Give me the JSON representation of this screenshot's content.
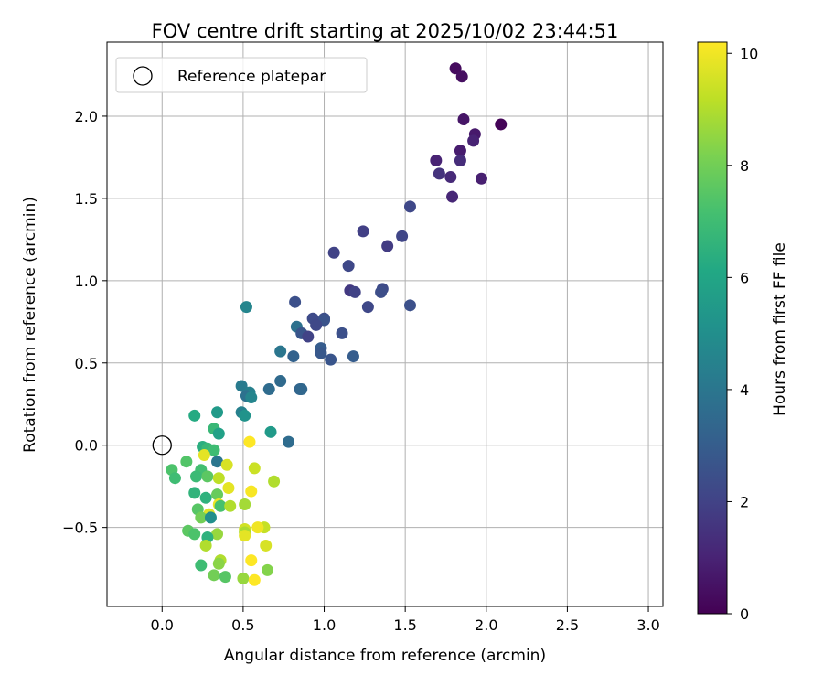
{
  "chart_data": {
    "type": "scatter",
    "title": "FOV centre drift starting at 2025/10/02 23:44:51",
    "xlabel": "Angular distance from reference (arcmin)",
    "ylabel": "Rotation from reference (arcmin)",
    "xlim": [
      -0.34,
      3.09
    ],
    "ylim": [
      -0.98,
      2.45
    ],
    "xticks": [
      0.0,
      0.5,
      1.0,
      1.5,
      2.0,
      2.5,
      3.0
    ],
    "xtick_labels": [
      "0.0",
      "0.5",
      "1.0",
      "1.5",
      "2.0",
      "2.5",
      "3.0"
    ],
    "yticks": [
      -0.5,
      0.0,
      0.5,
      1.0,
      1.5,
      2.0
    ],
    "ytick_labels": [
      "−0.5",
      "0.0",
      "0.5",
      "1.0",
      "1.5",
      "2.0"
    ],
    "grid": true,
    "legend": {
      "position": "top-left",
      "entries": [
        {
          "label": "Reference platepar",
          "marker": "hollow-circle",
          "x": 0,
          "y": 0
        }
      ]
    },
    "colorbar": {
      "label": "Hours from first FF file",
      "range": [
        0,
        10.2
      ],
      "ticks": [
        0,
        2,
        4,
        6,
        8,
        10
      ],
      "colormap": "viridis"
    },
    "points": [
      {
        "x": 1.81,
        "y": 2.29,
        "h": 0.3
      },
      {
        "x": 1.85,
        "y": 2.24,
        "h": 0.4
      },
      {
        "x": 2.09,
        "y": 1.95,
        "h": 0.1
      },
      {
        "x": 1.86,
        "y": 1.98,
        "h": 0.6
      },
      {
        "x": 1.93,
        "y": 1.89,
        "h": 0.7
      },
      {
        "x": 1.92,
        "y": 1.85,
        "h": 1.0
      },
      {
        "x": 1.84,
        "y": 1.79,
        "h": 0.8
      },
      {
        "x": 1.69,
        "y": 1.73,
        "h": 1.0
      },
      {
        "x": 1.84,
        "y": 1.73,
        "h": 1.3
      },
      {
        "x": 1.71,
        "y": 1.65,
        "h": 1.5
      },
      {
        "x": 1.78,
        "y": 1.63,
        "h": 1.2
      },
      {
        "x": 1.97,
        "y": 1.62,
        "h": 0.9
      },
      {
        "x": 1.79,
        "y": 1.51,
        "h": 1.1
      },
      {
        "x": 1.53,
        "y": 1.45,
        "h": 2.2
      },
      {
        "x": 1.24,
        "y": 1.3,
        "h": 1.9
      },
      {
        "x": 1.48,
        "y": 1.27,
        "h": 2.1
      },
      {
        "x": 1.39,
        "y": 1.21,
        "h": 1.8
      },
      {
        "x": 1.06,
        "y": 1.17,
        "h": 2.0
      },
      {
        "x": 1.15,
        "y": 1.09,
        "h": 2.2
      },
      {
        "x": 1.36,
        "y": 0.95,
        "h": 2.3
      },
      {
        "x": 1.35,
        "y": 0.93,
        "h": 2.4
      },
      {
        "x": 1.16,
        "y": 0.94,
        "h": 1.7
      },
      {
        "x": 1.19,
        "y": 0.93,
        "h": 2.0
      },
      {
        "x": 1.53,
        "y": 0.85,
        "h": 2.5
      },
      {
        "x": 1.27,
        "y": 0.84,
        "h": 2.2
      },
      {
        "x": 0.82,
        "y": 0.87,
        "h": 2.5
      },
      {
        "x": 0.52,
        "y": 0.84,
        "h": 4.6
      },
      {
        "x": 1.0,
        "y": 0.77,
        "h": 2.4
      },
      {
        "x": 0.93,
        "y": 0.77,
        "h": 2.3
      },
      {
        "x": 1.0,
        "y": 0.76,
        "h": 2.6
      },
      {
        "x": 0.95,
        "y": 0.73,
        "h": 2.2
      },
      {
        "x": 0.83,
        "y": 0.72,
        "h": 3.8
      },
      {
        "x": 0.86,
        "y": 0.68,
        "h": 2.7
      },
      {
        "x": 1.11,
        "y": 0.68,
        "h": 2.5
      },
      {
        "x": 0.9,
        "y": 0.66,
        "h": 2.0
      },
      {
        "x": 0.98,
        "y": 0.59,
        "h": 3.0
      },
      {
        "x": 0.98,
        "y": 0.56,
        "h": 2.8
      },
      {
        "x": 0.73,
        "y": 0.57,
        "h": 4.0
      },
      {
        "x": 0.81,
        "y": 0.54,
        "h": 3.2
      },
      {
        "x": 1.04,
        "y": 0.52,
        "h": 2.7
      },
      {
        "x": 1.18,
        "y": 0.54,
        "h": 3.0
      },
      {
        "x": 0.73,
        "y": 0.39,
        "h": 3.5
      },
      {
        "x": 0.49,
        "y": 0.36,
        "h": 4.2
      },
      {
        "x": 0.85,
        "y": 0.34,
        "h": 3.3
      },
      {
        "x": 0.66,
        "y": 0.34,
        "h": 3.6
      },
      {
        "x": 0.86,
        "y": 0.34,
        "h": 3.4
      },
      {
        "x": 0.54,
        "y": 0.32,
        "h": 4.4
      },
      {
        "x": 0.52,
        "y": 0.3,
        "h": 3.8
      },
      {
        "x": 0.55,
        "y": 0.29,
        "h": 4.6
      },
      {
        "x": 0.49,
        "y": 0.2,
        "h": 4.4
      },
      {
        "x": 0.51,
        "y": 0.18,
        "h": 5.2
      },
      {
        "x": 0.34,
        "y": 0.2,
        "h": 5.5
      },
      {
        "x": 0.2,
        "y": 0.18,
        "h": 6.2
      },
      {
        "x": 0.32,
        "y": 0.1,
        "h": 6.8
      },
      {
        "x": 0.35,
        "y": 0.07,
        "h": 5.8
      },
      {
        "x": 0.67,
        "y": 0.08,
        "h": 5.5
      },
      {
        "x": 0.78,
        "y": 0.02,
        "h": 3.6
      },
      {
        "x": 0.54,
        "y": 0.02,
        "h": 10.2
      },
      {
        "x": 0.25,
        "y": -0.01,
        "h": 6.4
      },
      {
        "x": 0.28,
        "y": -0.02,
        "h": 6.8
      },
      {
        "x": 0.32,
        "y": -0.03,
        "h": 7.0
      },
      {
        "x": 0.26,
        "y": -0.06,
        "h": 9.8
      },
      {
        "x": 0.15,
        "y": -0.1,
        "h": 7.4
      },
      {
        "x": 0.34,
        "y": -0.1,
        "h": 4.0
      },
      {
        "x": 0.4,
        "y": -0.12,
        "h": 9.6
      },
      {
        "x": 0.06,
        "y": -0.15,
        "h": 7.3
      },
      {
        "x": 0.24,
        "y": -0.15,
        "h": 7.1
      },
      {
        "x": 0.57,
        "y": -0.14,
        "h": 9.4
      },
      {
        "x": 0.08,
        "y": -0.2,
        "h": 7.0
      },
      {
        "x": 0.21,
        "y": -0.19,
        "h": 6.9
      },
      {
        "x": 0.28,
        "y": -0.19,
        "h": 7.6
      },
      {
        "x": 0.35,
        "y": -0.2,
        "h": 9.2
      },
      {
        "x": 0.69,
        "y": -0.22,
        "h": 9.0
      },
      {
        "x": 0.41,
        "y": -0.26,
        "h": 9.8
      },
      {
        "x": 0.55,
        "y": -0.28,
        "h": 10.1
      },
      {
        "x": 0.2,
        "y": -0.29,
        "h": 6.6
      },
      {
        "x": 0.27,
        "y": -0.32,
        "h": 6.5
      },
      {
        "x": 0.34,
        "y": -0.3,
        "h": 7.8
      },
      {
        "x": 0.35,
        "y": -0.36,
        "h": 9.9
      },
      {
        "x": 0.36,
        "y": -0.37,
        "h": 7.2
      },
      {
        "x": 0.42,
        "y": -0.37,
        "h": 9.0
      },
      {
        "x": 0.51,
        "y": -0.36,
        "h": 8.8
      },
      {
        "x": 0.22,
        "y": -0.39,
        "h": 7.5
      },
      {
        "x": 0.29,
        "y": -0.42,
        "h": 9.7
      },
      {
        "x": 0.24,
        "y": -0.44,
        "h": 8.0
      },
      {
        "x": 0.3,
        "y": -0.44,
        "h": 5.0
      },
      {
        "x": 0.63,
        "y": -0.5,
        "h": 9.3
      },
      {
        "x": 0.59,
        "y": -0.5,
        "h": 10.0
      },
      {
        "x": 0.51,
        "y": -0.51,
        "h": 9.5
      },
      {
        "x": 0.16,
        "y": -0.52,
        "h": 7.6
      },
      {
        "x": 0.2,
        "y": -0.54,
        "h": 7.3
      },
      {
        "x": 0.34,
        "y": -0.54,
        "h": 8.6
      },
      {
        "x": 0.51,
        "y": -0.53,
        "h": 8.9
      },
      {
        "x": 0.51,
        "y": -0.55,
        "h": 9.8
      },
      {
        "x": 0.28,
        "y": -0.56,
        "h": 6.5
      },
      {
        "x": 0.27,
        "y": -0.61,
        "h": 9.0
      },
      {
        "x": 0.64,
        "y": -0.61,
        "h": 9.6
      },
      {
        "x": 0.55,
        "y": -0.7,
        "h": 10.2
      },
      {
        "x": 0.36,
        "y": -0.7,
        "h": 9.0
      },
      {
        "x": 0.35,
        "y": -0.72,
        "h": 8.4
      },
      {
        "x": 0.24,
        "y": -0.73,
        "h": 7.0
      },
      {
        "x": 0.65,
        "y": -0.76,
        "h": 8.3
      },
      {
        "x": 0.32,
        "y": -0.79,
        "h": 8.0
      },
      {
        "x": 0.39,
        "y": -0.8,
        "h": 7.5
      },
      {
        "x": 0.5,
        "y": -0.81,
        "h": 8.6
      },
      {
        "x": 0.57,
        "y": -0.82,
        "h": 10.2
      }
    ]
  }
}
